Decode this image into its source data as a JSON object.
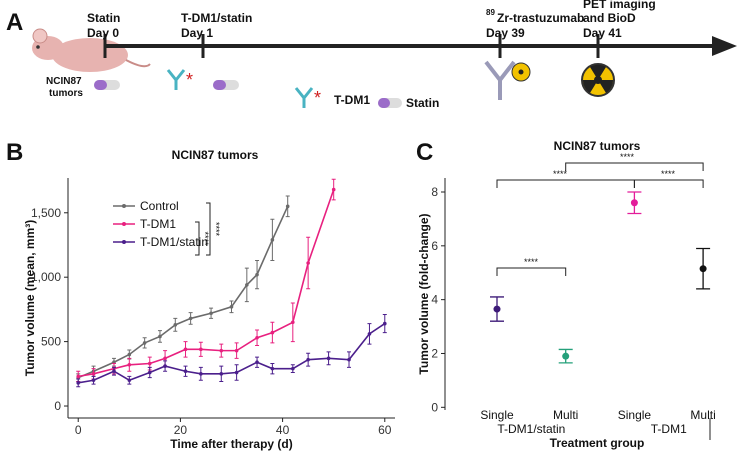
{
  "panel_labels": [
    "A",
    "B",
    "C"
  ],
  "timeline": {
    "model": [
      "NCIN87",
      "tumors"
    ],
    "events": [
      {
        "lines": [
          "Statin",
          "Day 0"
        ]
      },
      {
        "lines": [
          "T-DM1/statin",
          "Day 1"
        ]
      },
      {
        "isotope": "89",
        "lines": [
          "Zr-trastuzumab",
          "Day 39"
        ]
      },
      {
        "lines": [
          "PET imaging",
          "and BioD",
          "Day 41"
        ]
      }
    ],
    "legend": [
      "T-DM1",
      "Statin"
    ]
  },
  "chart_data": [
    {
      "type": "line",
      "title": "NCIN87 tumors",
      "x_label": "Time after therapy (d)",
      "y_label": "Tumor volume (mean, mm³)",
      "xlim": [
        -2,
        62
      ],
      "xticks": [
        0,
        20,
        40,
        60
      ],
      "ylim": [
        -93,
        1770
      ],
      "yticks": [
        0,
        500,
        {
          "value": 1000,
          "label": "1,000"
        },
        {
          "value": 1500,
          "label": "1,500"
        }
      ],
      "annotations": [
        "****",
        "****"
      ],
      "series": [
        {
          "name": "Control",
          "color": "#6b6b6b",
          "x": [
            0,
            3,
            7,
            10,
            13,
            16,
            19,
            22,
            26,
            30,
            33,
            35,
            38,
            41
          ],
          "values": [
            220,
            270,
            340,
            400,
            490,
            540,
            630,
            680,
            720,
            770,
            940,
            1020,
            1290,
            1550
          ],
          "errors": [
            30,
            40,
            30,
            35,
            40,
            45,
            50,
            45,
            40,
            45,
            130,
            110,
            160,
            80
          ]
        },
        {
          "name": "T-DM1",
          "color": "#e8207f",
          "x": [
            0,
            3,
            7,
            10,
            14,
            17,
            21,
            24,
            28,
            31,
            35,
            38,
            42,
            45,
            50
          ],
          "values": [
            230,
            250,
            290,
            320,
            330,
            370,
            440,
            440,
            430,
            430,
            530,
            570,
            650,
            1110,
            1680
          ],
          "errors": [
            40,
            40,
            40,
            50,
            50,
            60,
            60,
            55,
            50,
            60,
            60,
            80,
            150,
            200,
            80
          ]
        },
        {
          "name": "T-DM1/statin",
          "color": "#4b1f8c",
          "x": [
            0,
            3,
            7,
            10,
            14,
            17,
            21,
            24,
            28,
            31,
            35,
            38,
            42,
            45,
            49,
            53,
            57,
            60
          ],
          "values": [
            180,
            200,
            270,
            200,
            260,
            310,
            270,
            250,
            250,
            260,
            340,
            290,
            290,
            360,
            370,
            360,
            560,
            640
          ],
          "errors": [
            30,
            30,
            30,
            30,
            40,
            40,
            40,
            50,
            60,
            60,
            40,
            40,
            30,
            50,
            50,
            60,
            80,
            70
          ]
        }
      ]
    },
    {
      "type": "scatter",
      "title": "NCIN87 tumors",
      "x_label": "Treatment group",
      "y_label": "Tumor volume (fold-change)",
      "categories": [
        "Single",
        "Multi",
        "Single",
        "Multi"
      ],
      "groups": [
        "T-DM1/statin",
        "T-DM1"
      ],
      "values": [
        3.65,
        1.9,
        7.6,
        5.15
      ],
      "errors": [
        0.45,
        0.25,
        0.4,
        0.75
      ],
      "colors": [
        "#3d1a78",
        "#24a07a",
        "#e31c9a",
        "#111111"
      ],
      "ylim": [
        -0.1,
        8.52
      ],
      "yticks": [
        0,
        2,
        4,
        6,
        8
      ],
      "annotations": [
        "****",
        "****",
        "****",
        "****"
      ]
    }
  ]
}
